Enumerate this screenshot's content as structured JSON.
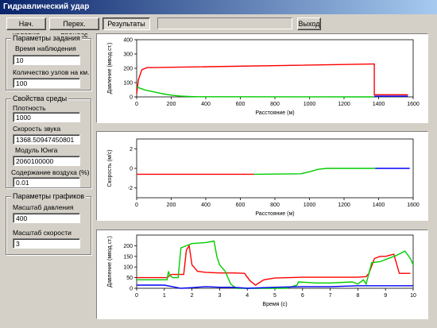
{
  "window": {
    "title": "Гидравлический удар"
  },
  "toolbar": {
    "initial_conditions_label": "Нач. условия",
    "transient_label": "Перех. процесс",
    "results_label": "Результаты",
    "exit_label": "Выход"
  },
  "task_params": {
    "title": "Параметры задания",
    "observation_time_label": "Время наблюдения",
    "observation_time_value": "10",
    "nodes_per_km_label": "Количество узлов на км.",
    "nodes_per_km_value": "100"
  },
  "medium_props": {
    "title": "Свойства среды",
    "density_label": "Плотность",
    "density_value": "1000",
    "sound_speed_label": "Скорость звука",
    "sound_speed_value": "1368.50947450801",
    "young_modulus_label": "Модуль Юнга",
    "young_modulus_value": "2060100000",
    "air_content_label": "Содержание воздуха (%)",
    "air_content_value": "0.01"
  },
  "chart_params": {
    "title": "Параметры графиков",
    "pressure_scale_label": "Масштаб давления",
    "pressure_scale_value": "400",
    "speed_scale_label": "Масштаб скорости",
    "speed_scale_value": "3"
  },
  "colors": {
    "red": "#ff0000",
    "green": "#00cc00",
    "blue": "#0000ff",
    "titlebar": "#0a246a"
  },
  "chart_data": [
    {
      "type": "line",
      "xlabel": "Расстояние (м)",
      "ylabel": "Давление (мвод.ст.)",
      "xlim": [
        0,
        1600
      ],
      "ylim": [
        0,
        400
      ],
      "xticks": [
        0,
        200,
        400,
        600,
        800,
        1000,
        1200,
        1400,
        1600
      ],
      "yticks": [
        0,
        100,
        200,
        300,
        400
      ],
      "series": [
        {
          "color": "red",
          "x": [
            0,
            10,
            30,
            60,
            100,
            1370,
            1375,
            1375,
            1570
          ],
          "y": [
            20,
            120,
            190,
            205,
            205,
            230,
            230,
            15,
            15
          ]
        },
        {
          "color": "green",
          "x": [
            0,
            20,
            50,
            100,
            150,
            200,
            250,
            300,
            350,
            1370
          ],
          "y": [
            70,
            60,
            48,
            35,
            22,
            12,
            6,
            3,
            1,
            0
          ]
        },
        {
          "color": "blue",
          "x": [
            1375,
            1400,
            1570
          ],
          "y": [
            5,
            5,
            5
          ]
        }
      ]
    },
    {
      "type": "line",
      "xlabel": "Расстояние (м)",
      "ylabel": "Скорость (м/с)",
      "xlim": [
        0,
        1600
      ],
      "ylim": [
        -3,
        3
      ],
      "xticks": [
        0,
        200,
        400,
        600,
        800,
        1000,
        1200,
        1400,
        1600
      ],
      "yticks": [
        -2,
        0,
        2
      ],
      "series": [
        {
          "color": "red",
          "x": [
            0,
            680
          ],
          "y": [
            -0.6,
            -0.6
          ]
        },
        {
          "color": "green",
          "x": [
            680,
            950,
            1000,
            1050,
            1100,
            1380
          ],
          "y": [
            -0.6,
            -0.55,
            -0.35,
            -0.1,
            0.0,
            0.0
          ]
        },
        {
          "color": "blue",
          "x": [
            1380,
            1580
          ],
          "y": [
            0.0,
            0.0
          ]
        }
      ]
    },
    {
      "type": "line",
      "xlabel": "Время (с)",
      "ylabel": "Давление (мвод.ст.)",
      "xlim": [
        0,
        10
      ],
      "ylim": [
        0,
        250
      ],
      "xticks": [
        0,
        1,
        2,
        3,
        4,
        5,
        6,
        7,
        8,
        9,
        10
      ],
      "yticks": [
        0,
        50,
        100,
        150,
        200
      ],
      "series": [
        {
          "color": "red",
          "x": [
            0,
            1.1,
            1.25,
            1.7,
            1.8,
            1.9,
            2.0,
            2.2,
            2.5,
            3.0,
            3.5,
            3.9,
            4.1,
            4.3,
            4.6,
            5.0,
            5.5,
            6.0,
            6.5,
            7.0,
            7.5,
            8.0,
            8.3,
            8.4,
            8.6,
            8.8,
            9.0,
            9.3,
            9.5,
            9.9
          ],
          "y": [
            50,
            50,
            65,
            65,
            180,
            200,
            110,
            80,
            75,
            72,
            72,
            70,
            35,
            15,
            40,
            48,
            50,
            52,
            52,
            52,
            52,
            52,
            55,
            70,
            140,
            150,
            150,
            160,
            70,
            70
          ]
        },
        {
          "color": "green",
          "x": [
            0,
            1.1,
            1.15,
            1.2,
            1.3,
            1.5,
            1.6,
            1.8,
            2.0,
            2.5,
            2.8,
            2.9,
            3.0,
            3.2,
            3.4,
            3.6,
            5.4,
            5.8,
            5.85,
            6.5,
            7.0,
            7.5,
            7.8,
            8.0,
            8.2,
            8.3,
            8.5,
            8.8,
            9.0,
            9.4,
            9.7,
            9.9,
            10.0
          ],
          "y": [
            40,
            40,
            80,
            60,
            50,
            50,
            190,
            200,
            210,
            215,
            222,
            150,
            110,
            80,
            20,
            0,
            0,
            15,
            30,
            25,
            25,
            28,
            30,
            20,
            40,
            20,
            120,
            125,
            135,
            155,
            175,
            140,
            110
          ]
        },
        {
          "color": "blue",
          "x": [
            0,
            0.5,
            1.0,
            1.2,
            1.6,
            2.0,
            2.5,
            3.0,
            3.5,
            4.0,
            5.0,
            6.0,
            7.0,
            8.0,
            9.0,
            10.0
          ],
          "y": [
            15,
            15,
            15,
            10,
            0,
            3,
            8,
            5,
            5,
            0,
            5,
            8,
            8,
            12,
            12,
            12
          ]
        }
      ]
    }
  ]
}
